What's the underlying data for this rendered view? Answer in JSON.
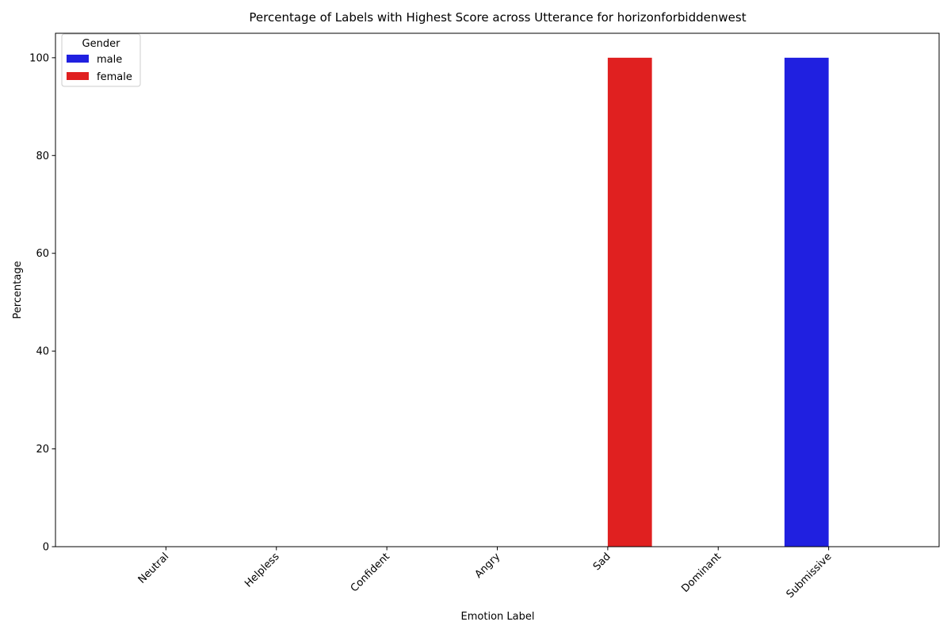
{
  "chart_data": {
    "type": "bar",
    "title": "Percentage of Labels with Highest Score across Utterance for horizonforbiddenwest",
    "xlabel": "Emotion Label",
    "ylabel": "Percentage",
    "categories": [
      "Neutral",
      "Helpless",
      "Confident",
      "Angry",
      "Sad",
      "Dominant",
      "Submissive"
    ],
    "series": [
      {
        "name": "male",
        "color": "#2020e0",
        "values": [
          0,
          0,
          0,
          0,
          0,
          0,
          100
        ]
      },
      {
        "name": "female",
        "color": "#e02020",
        "values": [
          0,
          0,
          0,
          0,
          100,
          0,
          0
        ]
      }
    ],
    "ylim": [
      0,
      105
    ],
    "yticks": [
      0,
      20,
      40,
      60,
      80,
      100
    ],
    "grid": false,
    "legend": {
      "title": "Gender",
      "placement": "top-left"
    }
  }
}
